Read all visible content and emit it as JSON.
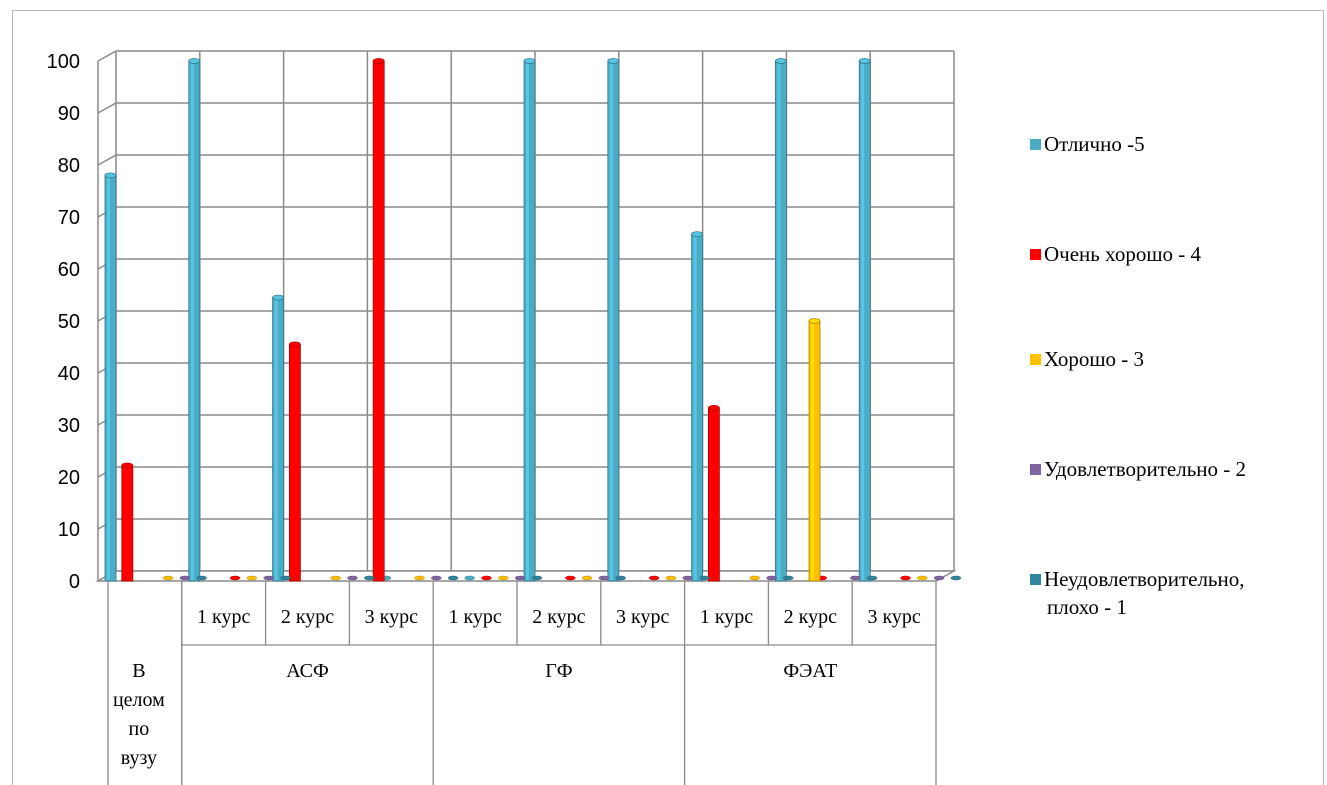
{
  "chart_data": {
    "type": "bar",
    "title": "",
    "xlabel": "",
    "ylabel": "",
    "ylim": [
      0,
      100
    ],
    "yticks": [
      "0",
      "10",
      "20",
      "30",
      "40",
      "50",
      "60",
      "70",
      "80",
      "90",
      "100"
    ],
    "groups": [
      {
        "label": "В целом по вузу",
        "lines": [
          "В",
          "целом",
          "по",
          "вузу"
        ],
        "subcats": [
          ""
        ]
      },
      {
        "label": "АСФ",
        "lines": [
          "АСФ"
        ],
        "subcats": [
          "1 курс",
          "2 курс",
          "3 курс"
        ]
      },
      {
        "label": "ГФ",
        "lines": [
          "ГФ"
        ],
        "subcats": [
          "1 курс",
          "2 курс",
          "3 курс"
        ]
      },
      {
        "label": "ФЭАТ",
        "lines": [
          "ФЭАТ"
        ],
        "subcats": [
          "1 курс",
          "2 курс",
          "3 курс"
        ]
      }
    ],
    "series": [
      {
        "name": "Отлично -5",
        "color": "#4BACC6",
        "values": [
          78,
          100,
          54.5,
          0,
          0,
          100,
          100,
          66.7,
          100,
          100
        ]
      },
      {
        "name": "Очень хорошо  - 4",
        "color": "#FF0000",
        "values": [
          22.2,
          0,
          45.5,
          100,
          0,
          0,
          0,
          33.3,
          0,
          0
        ]
      },
      {
        "name": "Хорошо - 3",
        "color": "#FFC000",
        "values": [
          0,
          0,
          0,
          0,
          0,
          0,
          0,
          0,
          50,
          0
        ]
      },
      {
        "name": "Удовлетворительно - 2",
        "color": "#8064A2",
        "values": [
          0,
          0,
          0,
          0,
          0,
          0,
          0,
          0,
          0,
          0
        ]
      },
      {
        "name": "Неудовлетворительно,\nплохо - 1",
        "color": "#31849B",
        "values": [
          0,
          0,
          0,
          0,
          0,
          0,
          0,
          0,
          0,
          0
        ]
      }
    ],
    "legend_position": "right",
    "grid": true
  }
}
